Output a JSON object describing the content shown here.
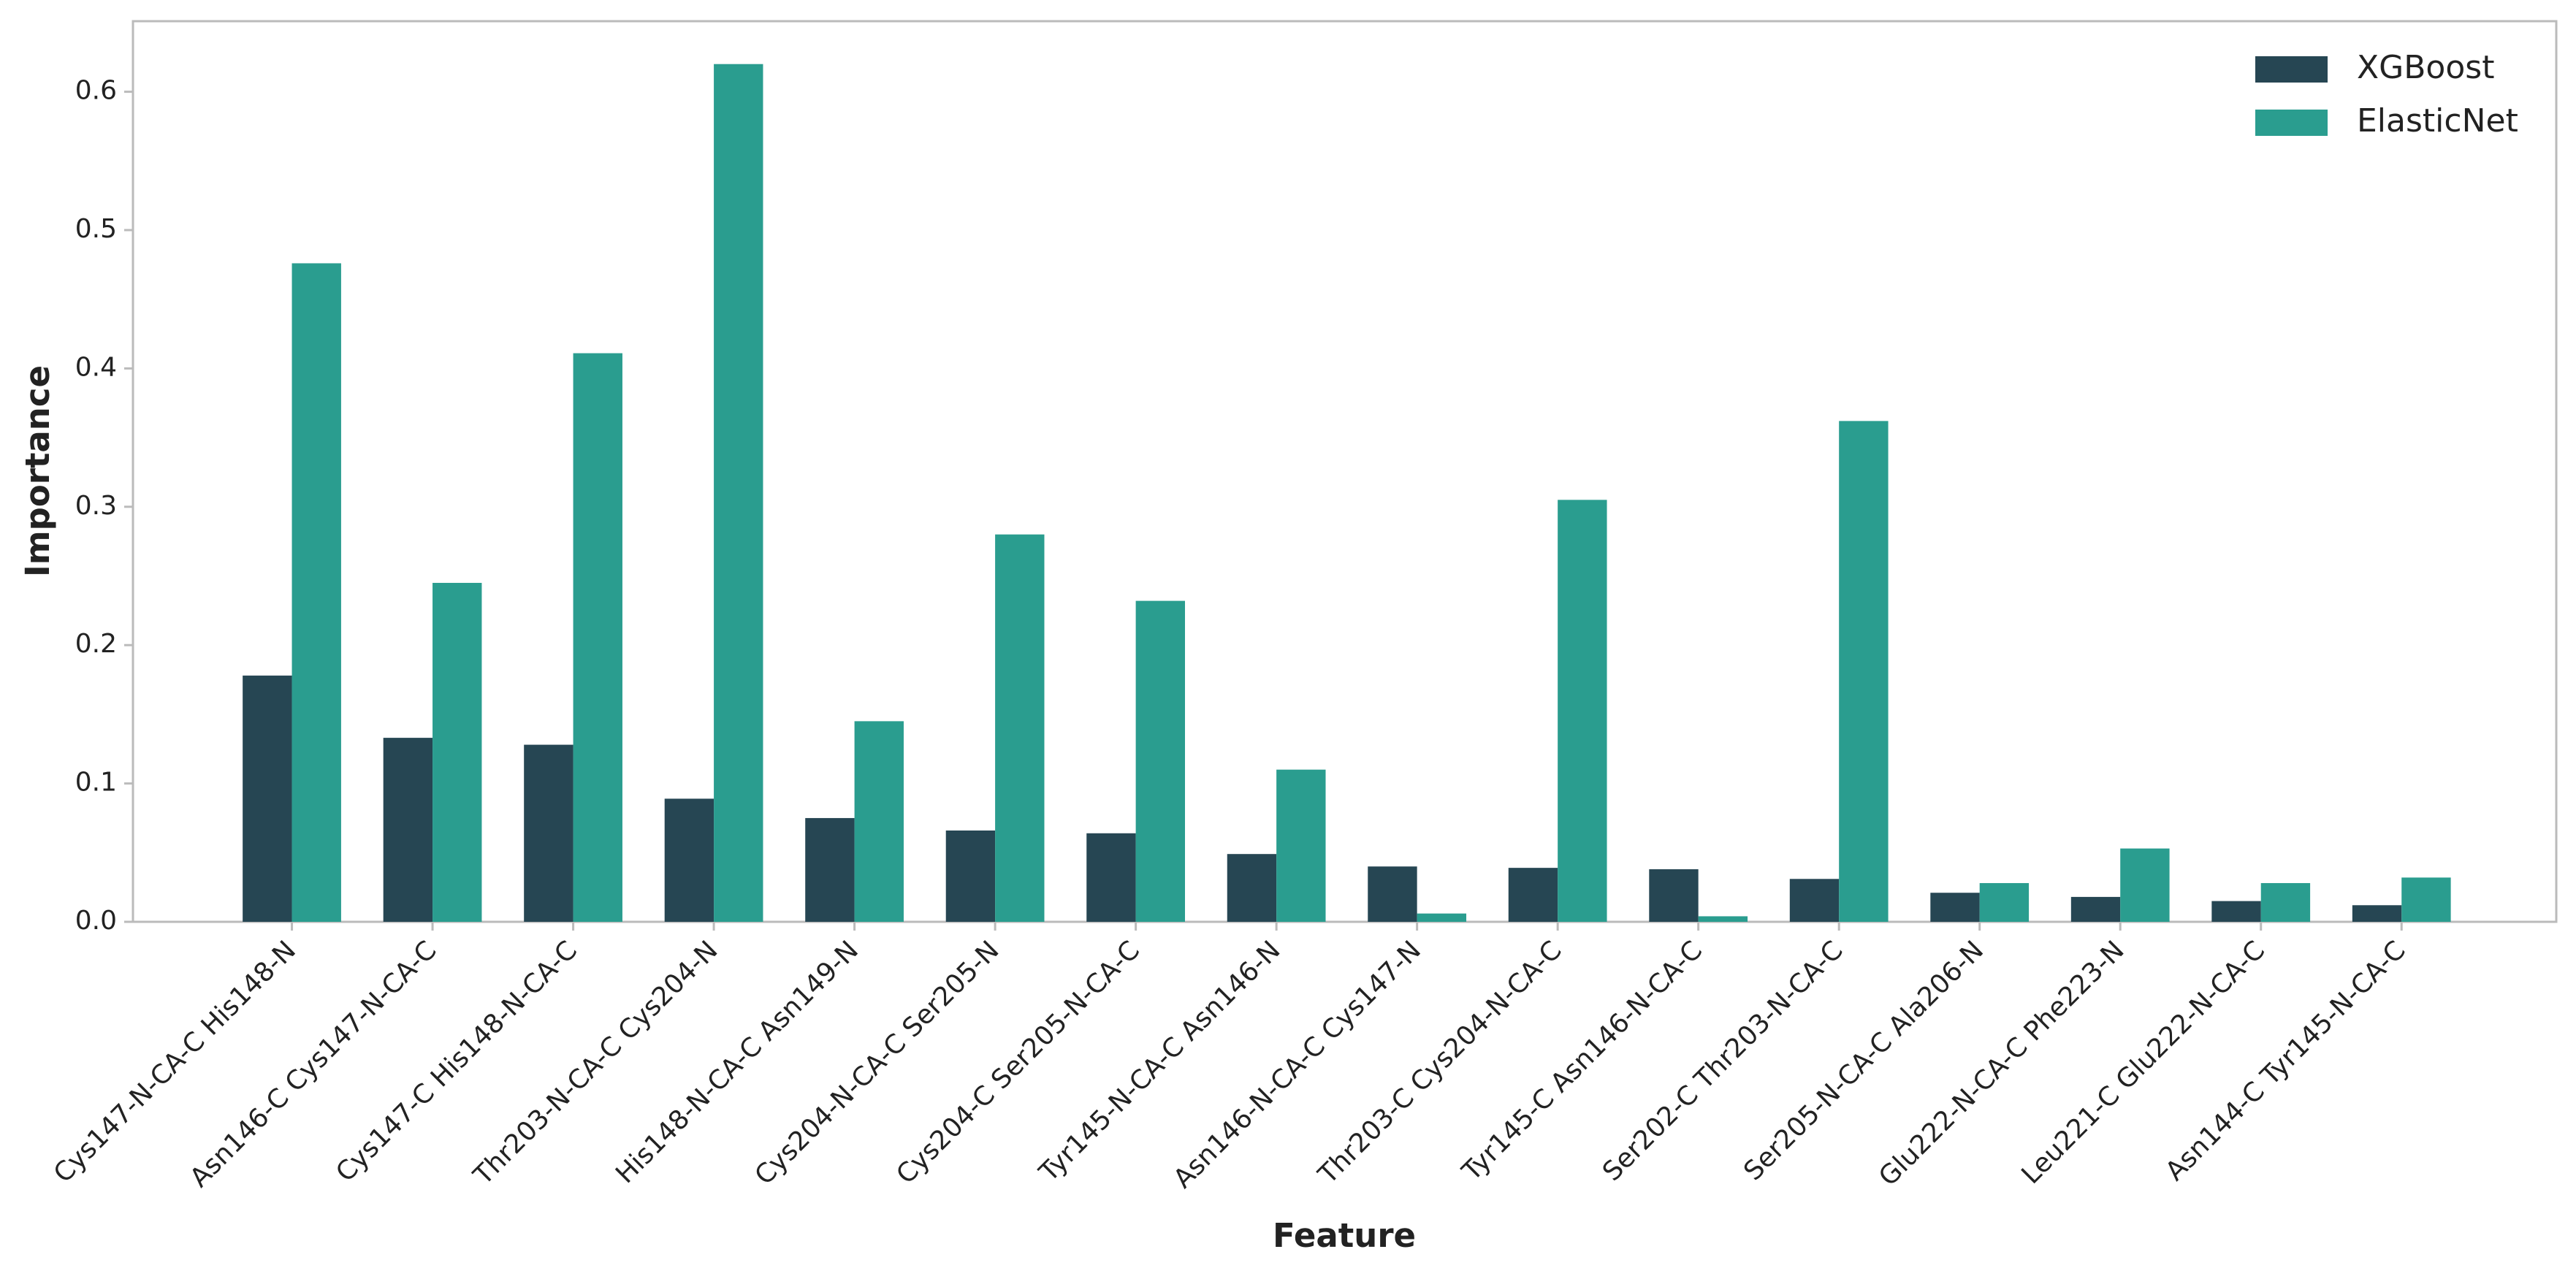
{
  "chart_data": {
    "type": "bar",
    "x_label": "Feature",
    "y_label": "Importance",
    "categories": [
      "Cys147-N-CA-C His148-N",
      "Asn146-C Cys147-N-CA-C",
      "Cys147-C His148-N-CA-C",
      "Thr203-N-CA-C Cys204-N",
      "His148-N-CA-C Asn149-N",
      "Cys204-N-CA-C Ser205-N",
      "Cys204-C Ser205-N-CA-C",
      "Tyr145-N-CA-C Asn146-N",
      "Asn146-N-CA-C Cys147-N",
      "Thr203-C Cys204-N-CA-C",
      "Tyr145-C Asn146-N-CA-C",
      "Ser202-C Thr203-N-CA-C",
      "Ser205-N-CA-C Ala206-N",
      "Glu222-N-CA-C Phe223-N",
      "Leu221-C Glu222-N-CA-C",
      "Asn144-C Tyr145-N-CA-C"
    ],
    "series": [
      {
        "name": "XGBoost",
        "color": "#264653",
        "values": [
          0.178,
          0.133,
          0.128,
          0.089,
          0.075,
          0.066,
          0.064,
          0.049,
          0.04,
          0.039,
          0.038,
          0.031,
          0.021,
          0.018,
          0.015,
          0.012
        ]
      },
      {
        "name": "ElasticNet",
        "color": "#2a9d8f",
        "values": [
          0.476,
          0.245,
          0.411,
          0.62,
          0.145,
          0.28,
          0.232,
          0.11,
          0.006,
          0.305,
          0.004,
          0.362,
          0.028,
          0.053,
          0.028,
          0.032
        ]
      }
    ],
    "ylim": [
      0,
      0.651
    ],
    "yticks": [
      {
        "value": 0,
        "label": "0.0"
      },
      0.1,
      0.2,
      0.3,
      0.4,
      0.5,
      0.6
    ],
    "legend": "upper right",
    "grid": false
  }
}
